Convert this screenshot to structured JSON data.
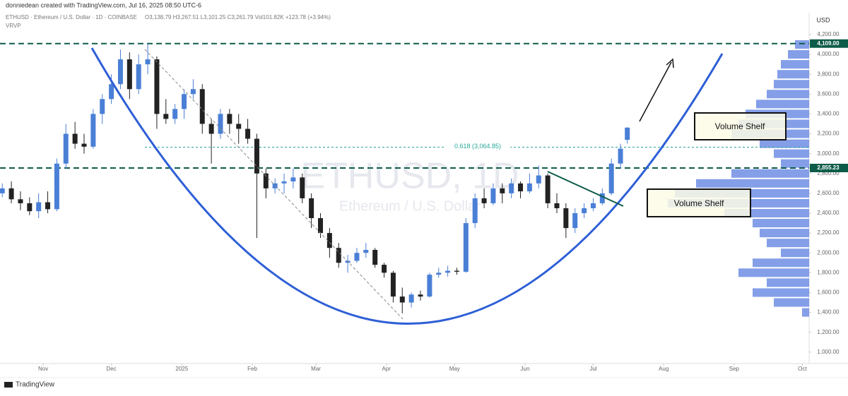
{
  "header": {
    "credit": "donniedean created with TradingView.com, Jul 16, 2025 08:50 UTC-6",
    "symbol_line": "ETHUSD · Ethereum / U.S. Dollar · 1D · COINBASE",
    "ohlc_line": "O3,138.79  H3,267.51  L3,101.25  C3,261.79  Vol101.82K  +123.78 (+3.94%)",
    "indicator": "VRVP"
  },
  "footer": {
    "brand": "TradingView"
  },
  "chart_data": {
    "type": "candlestick",
    "watermark": "ETHUSD, 1D",
    "watermark_sub": "Ethereum / U.S. Dollar",
    "currency": "USD",
    "up_color": "#4a7fd6",
    "down_color": "#222222",
    "x": [
      -18,
      -14,
      -10,
      -6,
      -2,
      2,
      6,
      10,
      14,
      18,
      22,
      26,
      30,
      34,
      38,
      42,
      46,
      50,
      54,
      58,
      62,
      66,
      70,
      74,
      78,
      82,
      86,
      90,
      94,
      98,
      102,
      106,
      110,
      114,
      118,
      122,
      126,
      130,
      134,
      138,
      142,
      146,
      150,
      154,
      158,
      162,
      166,
      170,
      174,
      178,
      182,
      186,
      190,
      194,
      198,
      202,
      206,
      210,
      214,
      218,
      222,
      226,
      230,
      234,
      238,
      242,
      246,
      250,
      254,
      257
    ],
    "open": [
      2600,
      2650,
      2540,
      2500,
      2420,
      2510,
      2440,
      2900,
      3200,
      3100,
      3070,
      3400,
      3550,
      3700,
      3950,
      3650,
      3900,
      3950,
      3400,
      3350,
      3450,
      3600,
      3650,
      3300,
      3200,
      3400,
      3300,
      3250,
      3150,
      2800,
      2650,
      2700,
      2720,
      2760,
      2550,
      2350,
      2200,
      2050,
      1900,
      1920,
      2000,
      2030,
      1880,
      1800,
      1560,
      1500,
      1580,
      1560,
      1780,
      1800,
      1820,
      1810,
      2300,
      2550,
      2500,
      2650,
      2600,
      2700,
      2620,
      2700,
      2780,
      2500,
      2450,
      2250,
      2400,
      2450,
      2500,
      2600,
      2900,
      3138.79
    ],
    "high": [
      2700,
      2720,
      2620,
      2560,
      2600,
      2620,
      2950,
      3300,
      3320,
      3200,
      3450,
      3600,
      3800,
      4050,
      4020,
      4000,
      4110,
      3980,
      3550,
      3500,
      3650,
      3750,
      3700,
      3350,
      3450,
      3450,
      3400,
      3350,
      3200,
      2850,
      2750,
      2800,
      2850,
      2800,
      2600,
      2400,
      2250,
      2100,
      1980,
      2050,
      2100,
      2050,
      1900,
      1820,
      1650,
      1600,
      1620,
      1800,
      1850,
      1870,
      1850,
      2350,
      2600,
      2650,
      2700,
      2700,
      2750,
      2720,
      2800,
      2880,
      2800,
      2600,
      2500,
      2450,
      2500,
      2550,
      2650,
      2950,
      3100,
      3267.51
    ],
    "low": [
      2560,
      2500,
      2430,
      2380,
      2350,
      2400,
      2420,
      2850,
      3050,
      3000,
      3050,
      3300,
      3500,
      3650,
      3550,
      3600,
      3800,
      3250,
      3300,
      3300,
      3350,
      3550,
      3200,
      2900,
      3150,
      3200,
      3100,
      3100,
      2150,
      2550,
      2600,
      2600,
      2650,
      2500,
      2250,
      2150,
      1950,
      1850,
      1800,
      1900,
      1950,
      1850,
      1750,
      1500,
      1390,
      1450,
      1520,
      1550,
      1750,
      1760,
      1780,
      1800,
      2250,
      2450,
      2480,
      2500,
      2550,
      2550,
      2600,
      2650,
      2450,
      2400,
      2150,
      2200,
      2350,
      2420,
      2480,
      2580,
      2850,
      3101.25
    ],
    "close": [
      2650,
      2540,
      2500,
      2420,
      2510,
      2440,
      2900,
      3200,
      3100,
      3070,
      3400,
      3550,
      3700,
      3950,
      3650,
      3900,
      3950,
      3400,
      3350,
      3450,
      3600,
      3650,
      3300,
      3200,
      3400,
      3300,
      3250,
      3150,
      2800,
      2650,
      2700,
      2720,
      2760,
      2550,
      2350,
      2200,
      2050,
      1900,
      1920,
      2000,
      2030,
      1880,
      1800,
      1560,
      1500,
      1580,
      1560,
      1780,
      1800,
      1820,
      1810,
      2300,
      2550,
      2500,
      2650,
      2600,
      2700,
      2620,
      2700,
      2780,
      2500,
      2450,
      2250,
      2400,
      2450,
      2500,
      2600,
      2900,
      3050,
      3261.79
    ],
    "xlim": [
      -19,
      337
    ],
    "xticks": [
      {
        "value": 0,
        "label": "Nov"
      },
      {
        "value": 30,
        "label": "Dec"
      },
      {
        "value": 61,
        "label": "2025"
      },
      {
        "value": 92,
        "label": "Feb"
      },
      {
        "value": 120,
        "label": "Mar"
      },
      {
        "value": 151,
        "label": "Apr"
      },
      {
        "value": 181,
        "label": "May"
      },
      {
        "value": 212,
        "label": "Jun"
      },
      {
        "value": 242,
        "label": "Jul"
      },
      {
        "value": 273,
        "label": "Aug"
      },
      {
        "value": 304,
        "label": "Sep"
      },
      {
        "value": 334,
        "label": "Oct"
      }
    ],
    "ylim": [
      885,
      4420
    ],
    "yticks": [
      {
        "value": 1000,
        "label": "1,000.00"
      },
      {
        "value": 1200,
        "label": "1,200.00"
      },
      {
        "value": 1400,
        "label": "1,400.00"
      },
      {
        "value": 1600,
        "label": "1,600.00"
      },
      {
        "value": 1800,
        "label": "1,800.00"
      },
      {
        "value": 2000,
        "label": "2,000.00"
      },
      {
        "value": 2200,
        "label": "2,200.00"
      },
      {
        "value": 2400,
        "label": "2,400.00"
      },
      {
        "value": 2600,
        "label": "2,600.00"
      },
      {
        "value": 2800,
        "label": "2,800.00"
      },
      {
        "value": 3000,
        "label": "3,000.00"
      },
      {
        "value": 3200,
        "label": "3,200.00"
      },
      {
        "value": 3400,
        "label": "3,400.00"
      },
      {
        "value": 3600,
        "label": "3,600.00"
      },
      {
        "value": 3800,
        "label": "3,800.00"
      },
      {
        "value": 4000,
        "label": "4,000.00"
      },
      {
        "value": 4200,
        "label": "4,200.00"
      }
    ],
    "levels": [
      {
        "value": 4109,
        "label": "4,109.00"
      },
      {
        "value": 2855.23,
        "label": "2,855.23"
      }
    ],
    "level_color": "#0d5c4a",
    "fib": {
      "value": 3064.85,
      "label": "0.618 (3,064.85)"
    },
    "fib_color": "#26a69a",
    "volume_profile": {
      "color": "#5b7fe0",
      "prices": [
        4100,
        4000,
        3900,
        3800,
        3700,
        3600,
        3500,
        3400,
        3300,
        3200,
        3100,
        3000,
        2900,
        2800,
        2700,
        2600,
        2500,
        2400,
        2300,
        2200,
        2100,
        2000,
        1900,
        1800,
        1700,
        1600,
        1500,
        1400
      ],
      "values": [
        20,
        30,
        40,
        45,
        50,
        60,
        75,
        90,
        100,
        110,
        70,
        50,
        40,
        110,
        160,
        190,
        200,
        120,
        80,
        70,
        60,
        40,
        80,
        100,
        60,
        80,
        50,
        10
      ]
    },
    "annotations": [
      "Volume Shelf",
      "Volume Shelf"
    ]
  }
}
